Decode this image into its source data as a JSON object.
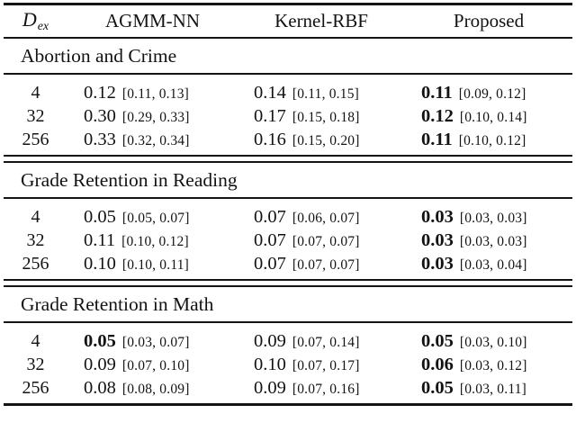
{
  "table": {
    "header": {
      "dex_main": "D",
      "dex_sub": "ex",
      "col2": "AGMM-NN",
      "col3": "Kernel-RBF",
      "col4": "Proposed"
    },
    "sections": [
      {
        "title": "Abortion and Crime",
        "rows": [
          {
            "d": "4",
            "cells": [
              {
                "v": "0.12",
                "ci": "[0.11, 0.13]",
                "bold": false
              },
              {
                "v": "0.14",
                "ci": "[0.11, 0.15]",
                "bold": false
              },
              {
                "v": "0.11",
                "ci": "[0.09, 0.12]",
                "bold": true
              }
            ]
          },
          {
            "d": "32",
            "cells": [
              {
                "v": "0.30",
                "ci": "[0.29, 0.33]",
                "bold": false
              },
              {
                "v": "0.17",
                "ci": "[0.15, 0.18]",
                "bold": false
              },
              {
                "v": "0.12",
                "ci": "[0.10, 0.14]",
                "bold": true
              }
            ]
          },
          {
            "d": "256",
            "cells": [
              {
                "v": "0.33",
                "ci": "[0.32, 0.34]",
                "bold": false
              },
              {
                "v": "0.16",
                "ci": "[0.15, 0.20]",
                "bold": false
              },
              {
                "v": "0.11",
                "ci": "[0.10, 0.12]",
                "bold": true
              }
            ]
          }
        ]
      },
      {
        "title": "Grade Retention in Reading",
        "rows": [
          {
            "d": "4",
            "cells": [
              {
                "v": "0.05",
                "ci": "[0.05, 0.07]",
                "bold": false
              },
              {
                "v": "0.07",
                "ci": "[0.06, 0.07]",
                "bold": false
              },
              {
                "v": "0.03",
                "ci": "[0.03, 0.03]",
                "bold": true
              }
            ]
          },
          {
            "d": "32",
            "cells": [
              {
                "v": "0.11",
                "ci": "[0.10, 0.12]",
                "bold": false
              },
              {
                "v": "0.07",
                "ci": "[0.07, 0.07]",
                "bold": false
              },
              {
                "v": "0.03",
                "ci": "[0.03, 0.03]",
                "bold": true
              }
            ]
          },
          {
            "d": "256",
            "cells": [
              {
                "v": "0.10",
                "ci": "[0.10, 0.11]",
                "bold": false
              },
              {
                "v": "0.07",
                "ci": "[0.07, 0.07]",
                "bold": false
              },
              {
                "v": "0.03",
                "ci": "[0.03, 0.04]",
                "bold": true
              }
            ]
          }
        ]
      },
      {
        "title": "Grade Retention in Math",
        "rows": [
          {
            "d": "4",
            "cells": [
              {
                "v": "0.05",
                "ci": "[0.03, 0.07]",
                "bold": true
              },
              {
                "v": "0.09",
                "ci": "[0.07, 0.14]",
                "bold": false
              },
              {
                "v": "0.05",
                "ci": "[0.03, 0.10]",
                "bold": true
              }
            ]
          },
          {
            "d": "32",
            "cells": [
              {
                "v": "0.09",
                "ci": "[0.07, 0.10]",
                "bold": false
              },
              {
                "v": "0.10",
                "ci": "[0.07, 0.17]",
                "bold": false
              },
              {
                "v": "0.06",
                "ci": "[0.03, 0.12]",
                "bold": true
              }
            ]
          },
          {
            "d": "256",
            "cells": [
              {
                "v": "0.08",
                "ci": "[0.08, 0.09]",
                "bold": false
              },
              {
                "v": "0.09",
                "ci": "[0.07, 0.16]",
                "bold": false
              },
              {
                "v": "0.05",
                "ci": "[0.03, 0.11]",
                "bold": true
              }
            ]
          }
        ]
      }
    ]
  }
}
